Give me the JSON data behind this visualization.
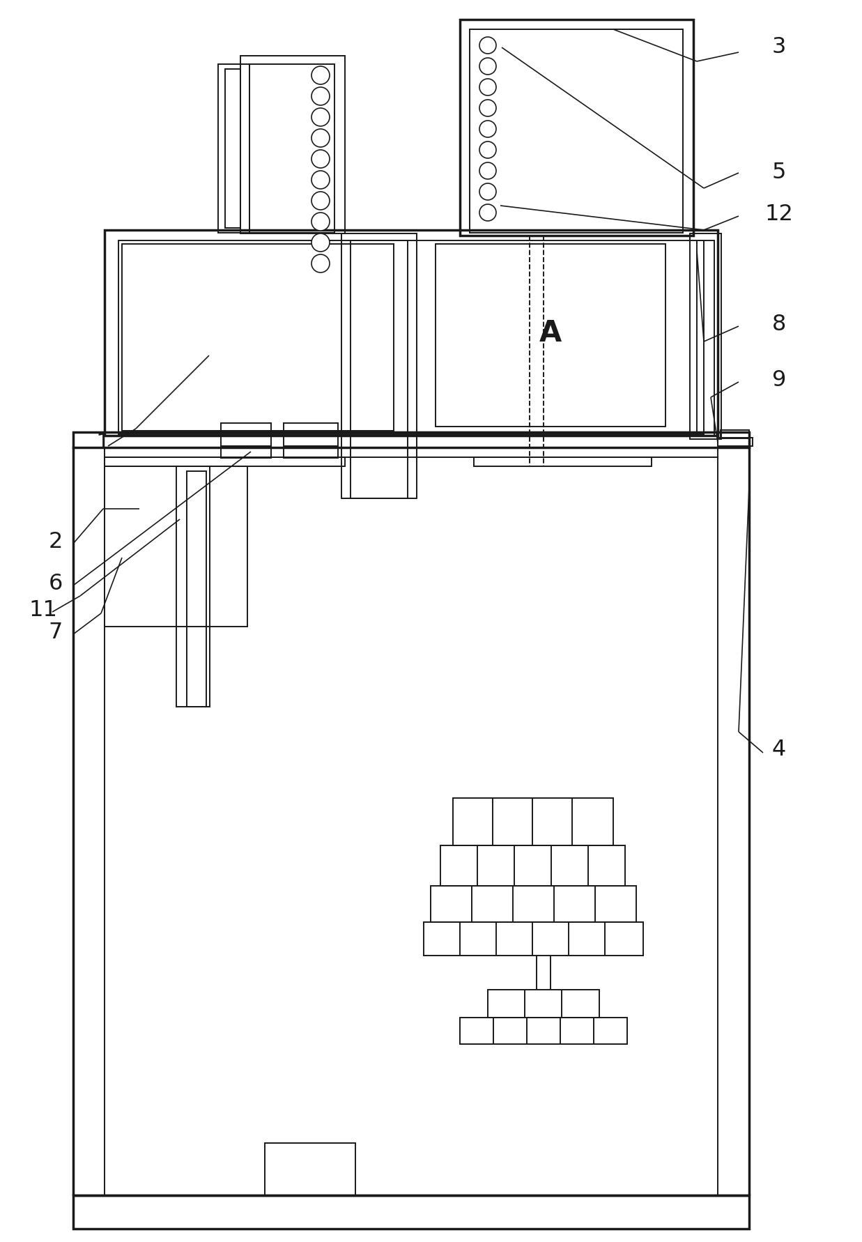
{
  "bg_color": "#ffffff",
  "lc": "#1a1a1a",
  "lw": 1.4,
  "tlw": 2.5,
  "fig_w": 12.37,
  "fig_h": 17.82
}
